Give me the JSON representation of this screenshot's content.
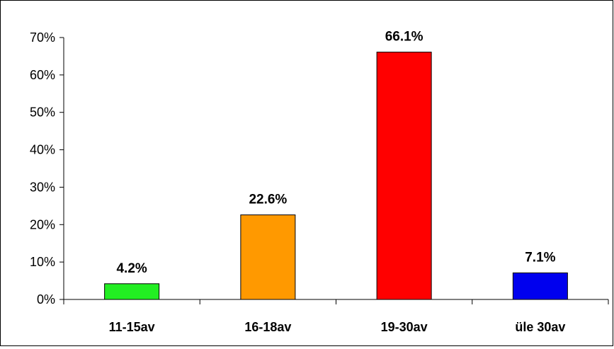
{
  "chart_data": {
    "type": "bar",
    "title": "",
    "xlabel": "",
    "ylabel": "",
    "categories": [
      "11-15av",
      "16-18av",
      "19-30av",
      "üle 30av"
    ],
    "values": [
      4.2,
      22.6,
      66.1,
      7.1
    ],
    "data_labels": [
      "4.2%",
      "22.6%",
      "66.1%",
      "7.1%"
    ],
    "bar_colors": [
      "#22ee22",
      "#ff9900",
      "#ff0000",
      "#0000ee"
    ],
    "ylim": [
      0,
      70
    ],
    "yticks": [
      0,
      10,
      20,
      30,
      40,
      50,
      60,
      70
    ],
    "ytick_labels": [
      "0%",
      "10%",
      "20%",
      "30%",
      "40%",
      "50%",
      "60%",
      "70%"
    ],
    "grid": false,
    "legend": "none"
  }
}
